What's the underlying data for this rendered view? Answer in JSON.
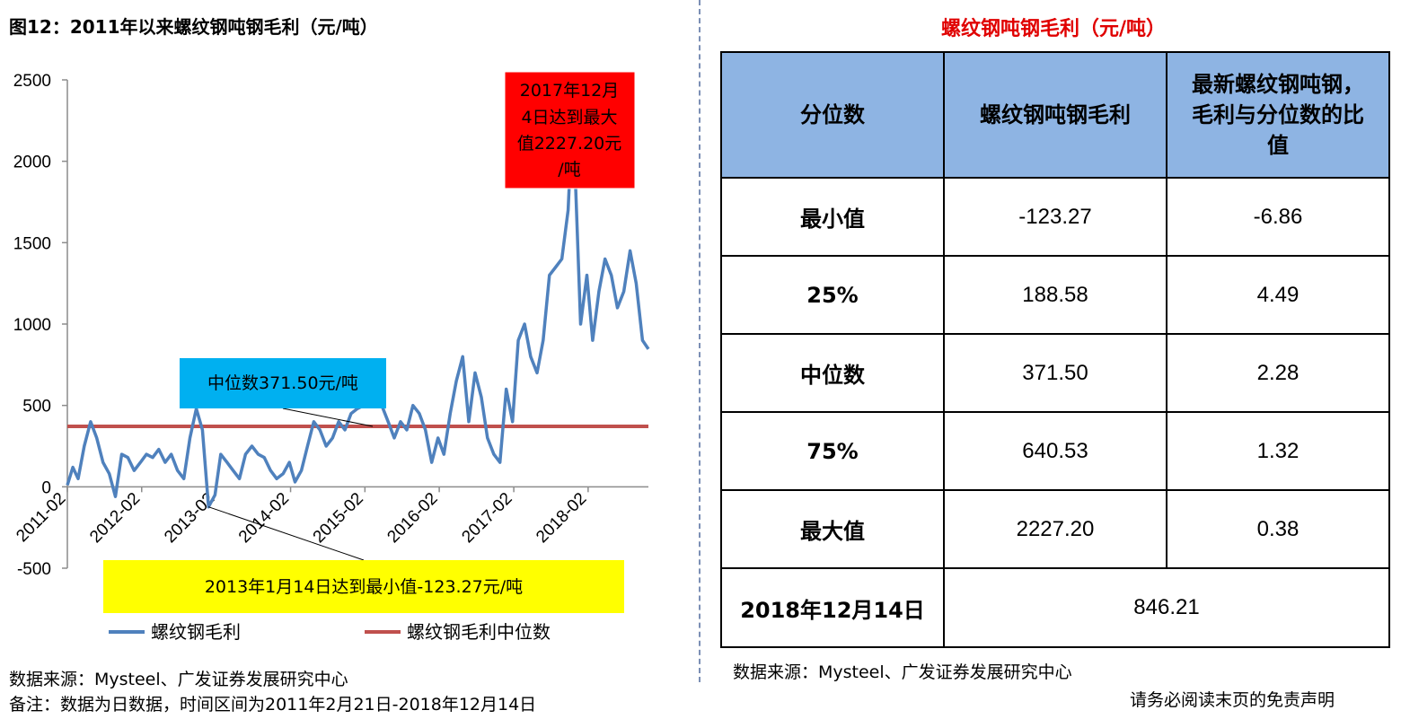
{
  "left_title": "图12：2011年以来螺纹钢吨钢毛利（元/吨）",
  "chart_data": {
    "type": "line",
    "title": "图12：2011年以来螺纹钢吨钢毛利（元/吨）",
    "ylim": [
      -500,
      2500
    ],
    "yticks": [
      "2500",
      "2000",
      "1500",
      "1000",
      "500",
      "0",
      "-500"
    ],
    "ytick_values": [
      2500,
      2000,
      1500,
      1000,
      500,
      0,
      -500
    ],
    "xticks": [
      "2011-02",
      "2012-02",
      "2013-02",
      "2014-02",
      "2015-02",
      "2016-02",
      "2017-02",
      "2018-02"
    ],
    "x_range": [
      "2011-02-21",
      "2018-12-14"
    ],
    "grid": false,
    "legend_position": "bottom",
    "series": [
      {
        "name": "螺纹钢毛利",
        "color": "#4f81bd",
        "x": [
          "2011-02-21",
          "2011-03-20",
          "2011-04-15",
          "2011-05-15",
          "2011-06-15",
          "2011-07-15",
          "2011-08-15",
          "2011-09-15",
          "2011-10-15",
          "2011-11-15",
          "2011-12-15",
          "2012-01-15",
          "2012-02-15",
          "2012-03-15",
          "2012-04-15",
          "2012-05-15",
          "2012-06-15",
          "2012-07-15",
          "2012-08-15",
          "2012-09-15",
          "2012-10-15",
          "2012-11-15",
          "2012-12-15",
          "2013-01-14",
          "2013-02-15",
          "2013-03-15",
          "2013-04-15",
          "2013-05-15",
          "2013-06-15",
          "2013-07-15",
          "2013-08-15",
          "2013-09-15",
          "2013-10-15",
          "2013-11-15",
          "2013-12-15",
          "2014-01-15",
          "2014-02-15",
          "2014-03-15",
          "2014-04-15",
          "2014-05-15",
          "2014-06-15",
          "2014-07-15",
          "2014-08-15",
          "2014-09-15",
          "2014-10-15",
          "2014-11-15",
          "2014-12-15",
          "2015-01-15",
          "2015-02-15",
          "2015-03-15",
          "2015-04-15",
          "2015-05-15",
          "2015-06-15",
          "2015-07-15",
          "2015-08-15",
          "2015-09-15",
          "2015-10-15",
          "2015-11-15",
          "2015-12-15",
          "2016-01-15",
          "2016-02-15",
          "2016-03-15",
          "2016-04-15",
          "2016-05-15",
          "2016-06-15",
          "2016-07-15",
          "2016-08-15",
          "2016-09-15",
          "2016-10-15",
          "2016-11-15",
          "2016-12-15",
          "2017-01-15",
          "2017-02-15",
          "2017-03-15",
          "2017-04-15",
          "2017-05-15",
          "2017-06-15",
          "2017-07-15",
          "2017-08-15",
          "2017-09-15",
          "2017-10-15",
          "2017-11-15",
          "2017-12-04",
          "2017-12-20",
          "2018-01-15",
          "2018-02-15",
          "2018-03-15",
          "2018-04-15",
          "2018-05-15",
          "2018-06-15",
          "2018-07-15",
          "2018-08-15",
          "2018-09-15",
          "2018-10-15",
          "2018-11-15",
          "2018-12-14"
        ],
        "values": [
          10,
          120,
          50,
          250,
          400,
          300,
          150,
          80,
          -60,
          200,
          180,
          100,
          150,
          200,
          180,
          230,
          150,
          200,
          100,
          50,
          300,
          480,
          350,
          -123.27,
          -50,
          200,
          150,
          100,
          50,
          200,
          250,
          200,
          180,
          100,
          50,
          80,
          150,
          30,
          100,
          250,
          400,
          350,
          250,
          300,
          400,
          350,
          450,
          480,
          500,
          500,
          600,
          500,
          400,
          300,
          400,
          350,
          500,
          450,
          350,
          150,
          300,
          200,
          450,
          650,
          800,
          400,
          700,
          550,
          300,
          200,
          150,
          600,
          400,
          900,
          1000,
          800,
          700,
          900,
          1300,
          1350,
          1400,
          1700,
          2227.2,
          1900,
          1000,
          1300,
          900,
          1200,
          1400,
          1300,
          1100,
          1200,
          1450,
          1250,
          900,
          846.21
        ]
      },
      {
        "name": "螺纹钢毛利中位数",
        "color": "#c0504d",
        "values": [
          371.5,
          371.5
        ]
      }
    ],
    "annotations": {
      "max": "2017年12月4日达到最大值2227.20元/吨",
      "median": "中位数371.50元/吨",
      "min": "2013年1月14日达到最小值-123.27元/吨"
    }
  },
  "annotation_lines": {
    "max": [
      "2017年12月",
      "4日达到最大",
      "值2227.20元",
      "/吨"
    ],
    "median": "中位数371.50元/吨",
    "min": "2013年1月14日达到最小值-123.27元/吨"
  },
  "left_source": "数据来源：Mysteel、广发证券发展研究中心",
  "left_note": "备注：数据为日数据，时间区间为2011年2月21日-2018年12月14日",
  "right_title": "螺纹钢吨钢毛利（元/吨）",
  "table": {
    "headers": [
      "分位数",
      "螺纹钢吨钢毛利",
      "最新螺纹钢吨钢，毛利与分位数的比值"
    ],
    "header3_lines": [
      "最新螺纹钢吨钢，",
      "毛利与分位数的比",
      "值"
    ],
    "rows": [
      {
        "label": "最小值",
        "value": "-123.27",
        "ratio": "-6.86"
      },
      {
        "label": "25%",
        "value": "188.58",
        "ratio": "4.49"
      },
      {
        "label": "中位数",
        "value": "371.50",
        "ratio": "2.28"
      },
      {
        "label": "75%",
        "value": "640.53",
        "ratio": "1.32"
      },
      {
        "label": "最大值",
        "value": "2227.20",
        "ratio": "0.38"
      }
    ],
    "latest": {
      "label": "2018年12月14日",
      "value": "846.21"
    }
  },
  "right_source": "数据来源：Mysteel、广发证券发展研究中心",
  "disclaimer": "请务必阅读末页的免责声明"
}
